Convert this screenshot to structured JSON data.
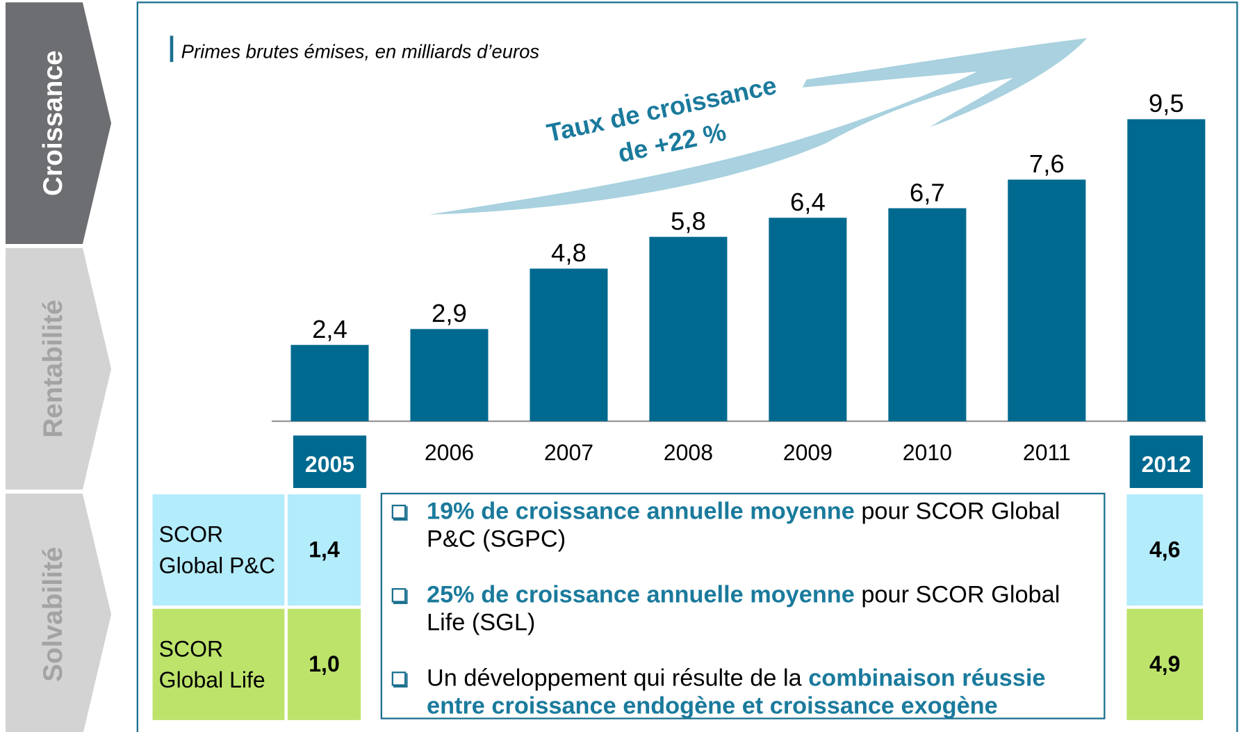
{
  "chart_data": {
    "type": "bar",
    "subtitle": "Primes brutes émises, en milliards d’euros",
    "annotation": [
      "Taux de croissance",
      "de +22 %"
    ],
    "categories": [
      "2005",
      "2006",
      "2007",
      "2008",
      "2009",
      "2010",
      "2011",
      "2012"
    ],
    "values": [
      2.4,
      2.9,
      4.8,
      5.8,
      6.4,
      6.7,
      7.6,
      9.5
    ],
    "value_labels": [
      "2,4",
      "2,9",
      "4,8",
      "5,8",
      "6,4",
      "6,7",
      "7,6",
      "9,5"
    ],
    "color": "#00698f",
    "ylim": [
      0,
      10
    ]
  },
  "tabs": [
    "Croissance",
    "Rentabilité",
    "Solvabilité"
  ],
  "table": {
    "rows": [
      [
        "SCOR Global P&C",
        "1,4",
        "4,6"
      ],
      [
        "SCOR Global Life",
        "1,0",
        "4,9"
      ]
    ]
  },
  "bullets": [
    [
      {
        "text": "19% de croissance annuelle moyenne",
        "bold": true
      },
      {
        "text": " pour SCOR Global P&C (SGPC)",
        "bold": false
      }
    ],
    [
      {
        "text": "25% de croissance annuelle moyenne",
        "bold": true
      },
      {
        "text": " pour SCOR Global Life (SGL)",
        "bold": false
      }
    ],
    [
      {
        "text": "Un développement qui résulte de la ",
        "bold": false
      },
      {
        "text": "combinaison réussie entre croissance endogène et croissance exogène",
        "bold": true
      }
    ]
  ]
}
